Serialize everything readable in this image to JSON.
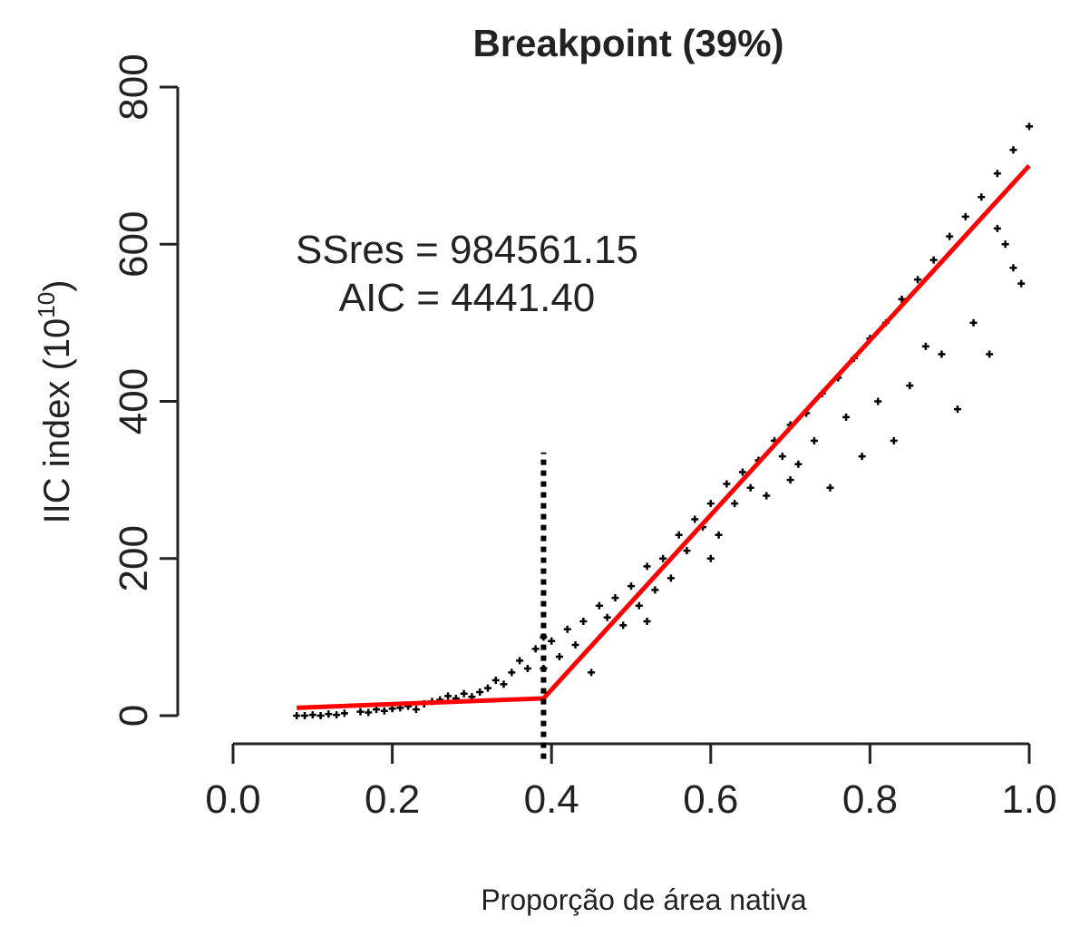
{
  "chart_data": {
    "type": "scatter",
    "title": "Breakpoint (39%)",
    "x_label": "Proporção de área nativa",
    "y_label": {
      "text": "IIC index (10",
      "superscript": "10",
      "suffix": ")"
    },
    "annotations": [
      "SSres = 984561.15",
      "AIC = 4441.40"
    ],
    "xlim": [
      0,
      1
    ],
    "ylim": [
      0,
      800
    ],
    "xticks": [
      {
        "value": 0,
        "label": "0.0"
      },
      0.2,
      0.4,
      0.6,
      0.8,
      {
        "value": 1,
        "label": "1.0"
      }
    ],
    "yticks": [
      0,
      200,
      400,
      600,
      800
    ],
    "color": "#000000",
    "x": [
      0.08,
      0.09,
      0.1,
      0.11,
      0.12,
      0.13,
      0.14,
      0.16,
      0.17,
      0.18,
      0.19,
      0.2,
      0.21,
      0.22,
      0.23,
      0.24,
      0.25,
      0.26,
      0.27,
      0.28,
      0.29,
      0.3,
      0.31,
      0.32,
      0.33,
      0.34,
      0.35,
      0.36,
      0.37,
      0.38,
      0.39,
      0.39,
      0.4,
      0.41,
      0.42,
      0.43,
      0.44,
      0.45,
      0.46,
      0.47,
      0.48,
      0.49,
      0.5,
      0.51,
      0.52,
      0.52,
      0.53,
      0.54,
      0.55,
      0.56,
      0.57,
      0.58,
      0.59,
      0.6,
      0.6,
      0.61,
      0.62,
      0.63,
      0.64,
      0.65,
      0.66,
      0.67,
      0.68,
      0.69,
      0.7,
      0.7,
      0.71,
      0.72,
      0.73,
      0.74,
      0.75,
      0.76,
      0.77,
      0.78,
      0.79,
      0.8,
      0.81,
      0.82,
      0.83,
      0.84,
      0.85,
      0.86,
      0.87,
      0.88,
      0.89,
      0.9,
      0.91,
      0.92,
      0.93,
      0.94,
      0.95,
      0.96,
      0.96,
      0.97,
      0.98,
      0.98,
      0.99,
      1.0
    ],
    "values": [
      0,
      0,
      1,
      0,
      2,
      1,
      3,
      5,
      4,
      8,
      6,
      9,
      10,
      12,
      8,
      15,
      18,
      20,
      25,
      22,
      28,
      24,
      30,
      35,
      45,
      40,
      55,
      70,
      60,
      85,
      100,
      60,
      95,
      75,
      110,
      90,
      120,
      55,
      140,
      125,
      150,
      115,
      165,
      140,
      190,
      120,
      160,
      200,
      175,
      230,
      210,
      250,
      240,
      270,
      200,
      230,
      295,
      270,
      310,
      290,
      325,
      280,
      350,
      330,
      370,
      300,
      320,
      385,
      350,
      410,
      290,
      430,
      380,
      455,
      330,
      480,
      400,
      500,
      350,
      530,
      420,
      555,
      470,
      580,
      460,
      610,
      390,
      635,
      500,
      660,
      460,
      690,
      620,
      600,
      720,
      570,
      550,
      750
    ],
    "fit_line": {
      "x": [
        0.08,
        0.39,
        1.0
      ],
      "values": [
        10,
        22,
        700
      ],
      "color": "#ff0000"
    },
    "breakpoint_line": {
      "x": 0.39,
      "values": [
        -55,
        335
      ],
      "color": "#000000"
    }
  }
}
